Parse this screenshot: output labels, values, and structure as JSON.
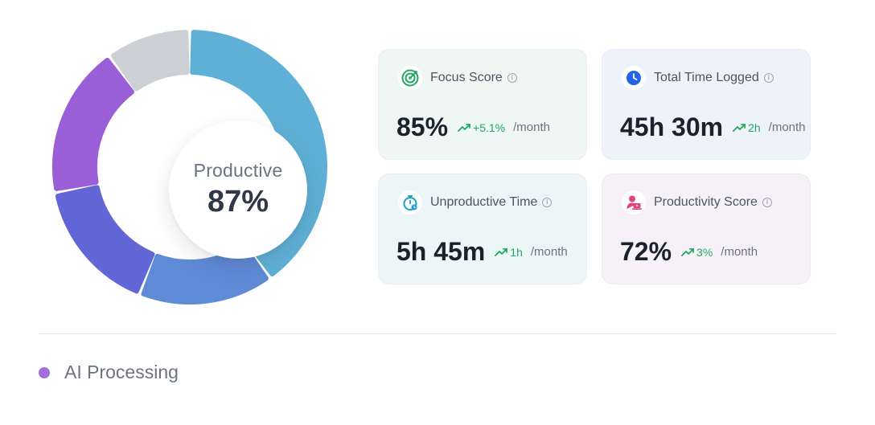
{
  "donut": {
    "center_label": "Productive",
    "center_value": "87%",
    "segments": [
      {
        "color": "#5fb0d6",
        "share": 0.4
      },
      {
        "color": "#5f8ad6",
        "share": 0.16
      },
      {
        "color": "#6266d6",
        "share": 0.16
      },
      {
        "color": "#9a5fd6",
        "share": 0.18
      },
      {
        "color": "#cdd1d6",
        "share": 0.1
      }
    ]
  },
  "cards": [
    {
      "title": "Focus Score",
      "value": "85%",
      "trend": "+5.1%",
      "period": "/month",
      "icon": "target-icon",
      "bg": "#eef7f3"
    },
    {
      "title": "Total Time Logged",
      "value": "45h 30m",
      "trend": "2h",
      "period": "/month",
      "icon": "clock-icon",
      "bg": "#eef3fb"
    },
    {
      "title": "Unproductive Time",
      "value": "5h 45m",
      "trend": "1h",
      "period": "/month",
      "icon": "stopwatch-icon",
      "bg": "#edf6f7"
    },
    {
      "title": "Productivity Score",
      "value": "72%",
      "trend": "3%",
      "period": "/month",
      "icon": "person-laptop-icon",
      "bg": "#f6f1f7"
    }
  ],
  "legend": {
    "label": "AI Processing",
    "color": "#a46ee0"
  }
}
